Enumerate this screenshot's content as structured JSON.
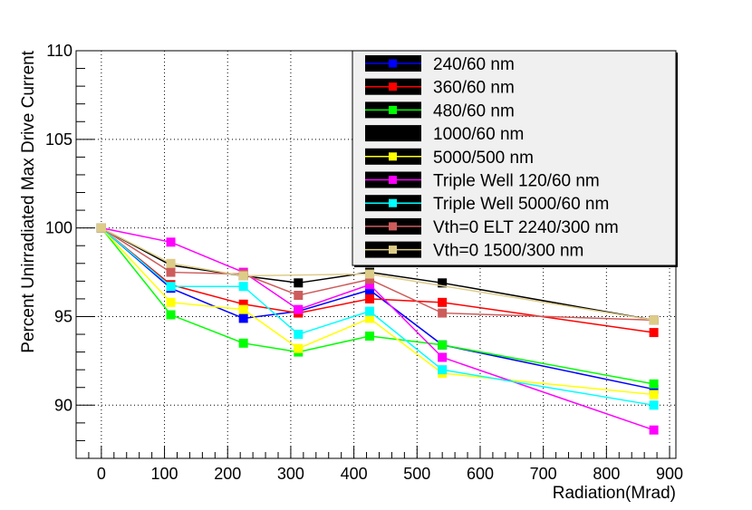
{
  "chart_data": {
    "type": "line",
    "title": "",
    "xlabel": "Radiation(Mrad)",
    "ylabel": "Percent Unirradiated Max Drive Current",
    "xlim": [
      -40,
      910
    ],
    "ylim": [
      87,
      110
    ],
    "xticks": [
      0,
      100,
      200,
      300,
      400,
      500,
      600,
      700,
      800,
      900
    ],
    "yticks": [
      90,
      95,
      100,
      105,
      110
    ],
    "grid": true,
    "legend_position": "top-right",
    "x": [
      0,
      110,
      225,
      312,
      425,
      540,
      875
    ],
    "series": [
      {
        "name": "240/60 nm",
        "color": "#0000ff",
        "values": [
          100,
          96.6,
          94.9,
          95.3,
          96.5,
          93.4,
          90.9
        ]
      },
      {
        "name": "360/60 nm",
        "color": "#ff0000",
        "values": [
          100,
          96.8,
          95.7,
          95.2,
          96.0,
          95.8,
          94.1
        ]
      },
      {
        "name": "480/60 nm",
        "color": "#00ff00",
        "values": [
          100,
          95.1,
          93.5,
          93.0,
          93.9,
          93.4,
          91.2
        ]
      },
      {
        "name": "1000/60 nm",
        "color": "#000000",
        "values": [
          100,
          97.9,
          97.3,
          96.9,
          97.5,
          96.9,
          94.8
        ]
      },
      {
        "name": "5000/500 nm",
        "color": "#ffff00",
        "values": [
          100,
          95.8,
          95.4,
          93.2,
          94.9,
          91.8,
          90.6
        ]
      },
      {
        "name": "Triple Well 120/60 nm",
        "color": "#ff00ff",
        "values": [
          100,
          99.2,
          97.5,
          95.4,
          96.8,
          92.7,
          88.6
        ]
      },
      {
        "name": "Triple Well 5000/60 nm",
        "color": "#00ffff",
        "values": [
          100,
          96.7,
          96.7,
          94.0,
          95.3,
          92.0,
          90.0
        ]
      },
      {
        "name": "Vth=0 ELT 2240/300 nm",
        "color": "#cd5c5c",
        "values": [
          100,
          97.5,
          97.4,
          96.2,
          97.1,
          95.2,
          94.8
        ]
      },
      {
        "name": "Vth=0 1500/300 nm",
        "color": "#ddcc88",
        "values": [
          100,
          98.0,
          97.3,
          null,
          97.4,
          null,
          94.8
        ]
      }
    ]
  }
}
